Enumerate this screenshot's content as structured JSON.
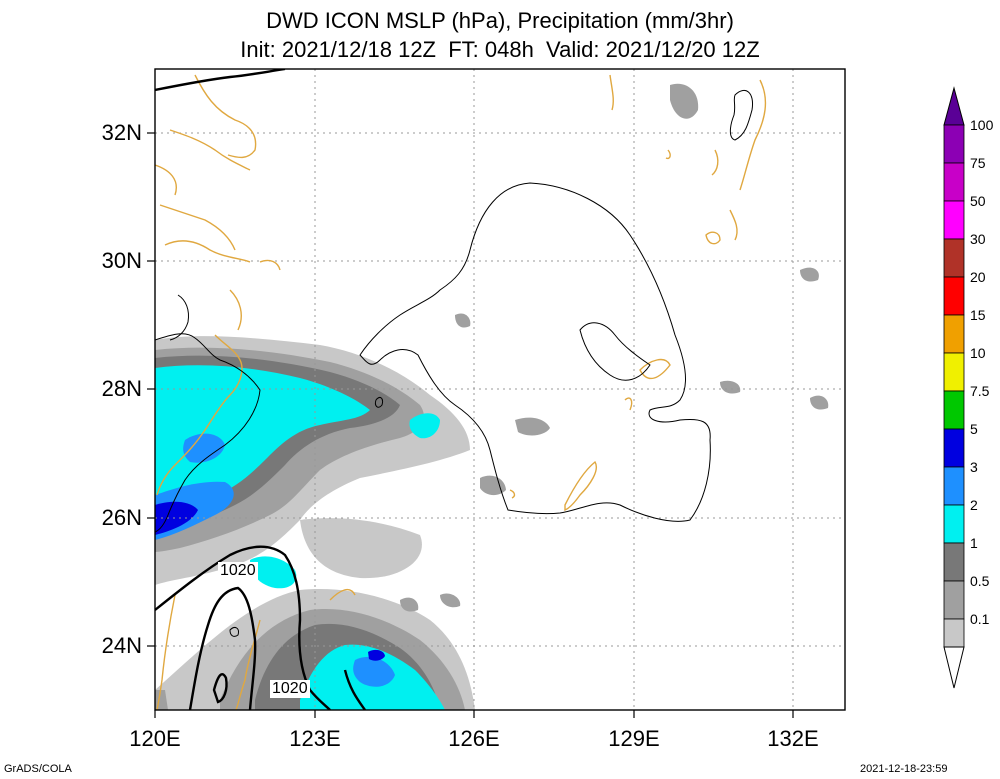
{
  "title": {
    "line1": "DWD ICON MSLP (hPa), Precipitation (mm/3hr)",
    "line2": "Init: 2021/12/18 12Z  FT: 048h  Valid: 2021/12/20 12Z"
  },
  "map": {
    "lon_range": [
      120,
      133
    ],
    "lat_range": [
      23,
      33
    ],
    "lon_ticks": [
      120,
      123,
      126,
      129,
      132
    ],
    "lat_ticks": [
      24,
      26,
      28,
      30,
      32
    ],
    "lon_tick_labels": [
      "120E",
      "123E",
      "126E",
      "129E",
      "132E"
    ],
    "lat_tick_labels": [
      "24N",
      "26N",
      "28N",
      "30N",
      "32N"
    ],
    "grid": true,
    "coastline_color": "#e0a840",
    "contour_labels": [
      "1020",
      "1020"
    ]
  },
  "colorbar": {
    "levels": [
      "0.1",
      "0.5",
      "1",
      "2",
      "3",
      "5",
      "7.5",
      "10",
      "15",
      "20",
      "30",
      "50",
      "75",
      "100"
    ],
    "colors": [
      "#c8c8c8",
      "#a0a0a0",
      "#787878",
      "#00f0f0",
      "#1e90ff",
      "#0000e0",
      "#00c800",
      "#f0f000",
      "#f0a000",
      "#ff0000",
      "#b03228",
      "#ff00ff",
      "#c800c8",
      "#8c00b4",
      "#5a0096"
    ]
  },
  "footer": {
    "left": "GrADS/COLA",
    "right": "2021-12-18-23:59"
  }
}
